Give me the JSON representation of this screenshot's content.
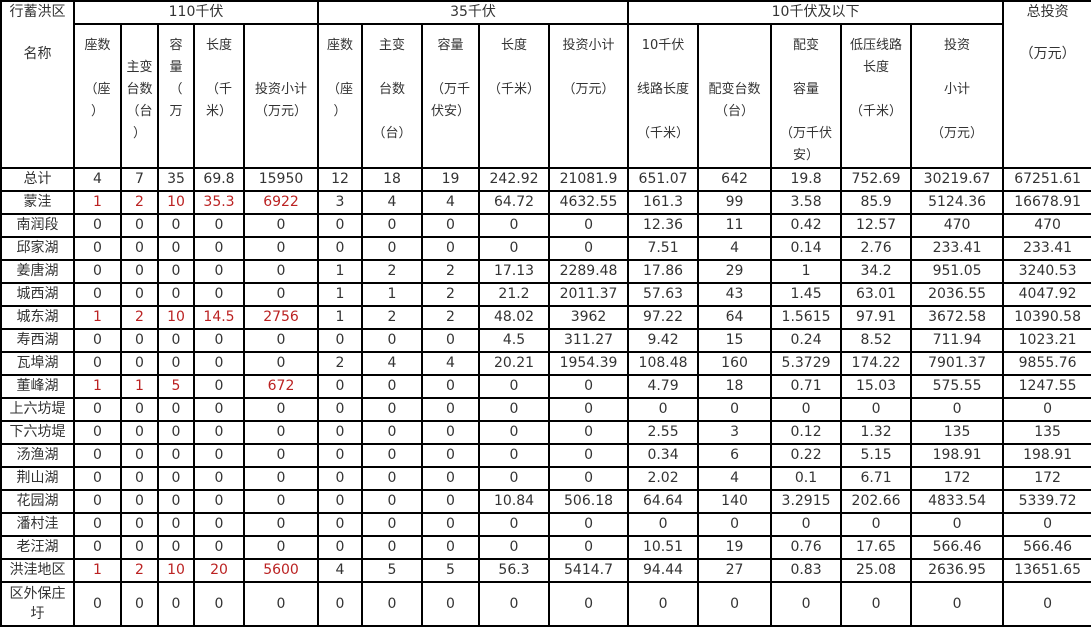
{
  "header": {
    "region": "行蓄洪区\n\n名称",
    "group_110": "110千伏",
    "group_35": "35千伏",
    "group_10": "10千伏及以下",
    "total": "总投资\n\n（万元）",
    "cols_110": [
      "座数\n\n（座\n）",
      "\n主变\n台数\n（台\n）",
      "容\n量\n（\n万",
      "长度\n\n（千\n米）",
      "\n\n投资小计\n（万元）"
    ],
    "cols_35": [
      "座数\n\n（座\n）",
      "主变\n\n台数\n\n（台）",
      "容量\n\n（万千\n伏安）",
      "长度\n\n（千米）",
      "投资小计\n\n（万元）"
    ],
    "cols_10": [
      "10千伏\n\n线路长度\n\n（千米）",
      "\n\n配变台数\n（台）",
      "配变\n\n容量\n\n（万千伏\n安）",
      "低压线路\n长度\n\n（千米）",
      "投资\n\n小计\n\n（万元）"
    ]
  },
  "rows": [
    [
      "总计",
      "4",
      "7",
      "35",
      "69.8",
      "15950",
      "12",
      "18",
      "19",
      "242.92",
      "21081.9",
      "651.07",
      "642",
      "19.8",
      "752.69",
      "30219.67",
      "67251.61"
    ],
    [
      "蒙洼",
      "1",
      "2",
      "10",
      "35.3",
      "6922",
      "3",
      "4",
      "4",
      "64.72",
      "4632.55",
      "161.3",
      "99",
      "3.58",
      "85.9",
      "5124.36",
      "16678.91"
    ],
    [
      "南润段",
      "0",
      "0",
      "0",
      "0",
      "0",
      "0",
      "0",
      "0",
      "0",
      "0",
      "12.36",
      "11",
      "0.42",
      "12.57",
      "470",
      "470"
    ],
    [
      "邱家湖",
      "0",
      "0",
      "0",
      "0",
      "0",
      "0",
      "0",
      "0",
      "0",
      "0",
      "7.51",
      "4",
      "0.14",
      "2.76",
      "233.41",
      "233.41"
    ],
    [
      "姜唐湖",
      "0",
      "0",
      "0",
      "0",
      "0",
      "1",
      "2",
      "2",
      "17.13",
      "2289.48",
      "17.86",
      "29",
      "1",
      "34.2",
      "951.05",
      "3240.53"
    ],
    [
      "城西湖",
      "0",
      "0",
      "0",
      "0",
      "0",
      "1",
      "1",
      "2",
      "21.2",
      "2011.37",
      "57.63",
      "43",
      "1.45",
      "63.01",
      "2036.55",
      "4047.92"
    ],
    [
      "城东湖",
      "1",
      "2",
      "10",
      "14.5",
      "2756",
      "1",
      "2",
      "2",
      "48.02",
      "3962",
      "97.22",
      "64",
      "1.5615",
      "97.91",
      "3672.58",
      "10390.58"
    ],
    [
      "寿西湖",
      "0",
      "0",
      "0",
      "0",
      "0",
      "0",
      "0",
      "0",
      "4.5",
      "311.27",
      "9.42",
      "15",
      "0.24",
      "8.52",
      "711.94",
      "1023.21"
    ],
    [
      "瓦埠湖",
      "0",
      "0",
      "0",
      "0",
      "0",
      "2",
      "4",
      "4",
      "20.21",
      "1954.39",
      "108.48",
      "160",
      "5.3729",
      "174.22",
      "7901.37",
      "9855.76"
    ],
    [
      "董峰湖",
      "1",
      "1",
      "5",
      "0",
      "672",
      "0",
      "0",
      "0",
      "0",
      "0",
      "4.79",
      "18",
      "0.71",
      "15.03",
      "575.55",
      "1247.55"
    ],
    [
      "上六坊堤",
      "0",
      "0",
      "0",
      "0",
      "0",
      "0",
      "0",
      "0",
      "0",
      "0",
      "0",
      "0",
      "0",
      "0",
      "0",
      "0"
    ],
    [
      "下六坊堤",
      "0",
      "0",
      "0",
      "0",
      "0",
      "0",
      "0",
      "0",
      "0",
      "0",
      "2.55",
      "3",
      "0.12",
      "1.32",
      "135",
      "135"
    ],
    [
      "汤渔湖",
      "0",
      "0",
      "0",
      "0",
      "0",
      "0",
      "0",
      "0",
      "0",
      "0",
      "0.34",
      "6",
      "0.22",
      "5.15",
      "198.91",
      "198.91"
    ],
    [
      "荆山湖",
      "0",
      "0",
      "0",
      "0",
      "0",
      "0",
      "0",
      "0",
      "0",
      "0",
      "2.02",
      "4",
      "0.1",
      "6.71",
      "172",
      "172"
    ],
    [
      "花园湖",
      "0",
      "0",
      "0",
      "0",
      "0",
      "0",
      "0",
      "0",
      "10.84",
      "506.18",
      "64.64",
      "140",
      "3.2915",
      "202.66",
      "4833.54",
      "5339.72"
    ],
    [
      "潘村洼",
      "0",
      "0",
      "0",
      "0",
      "0",
      "0",
      "0",
      "0",
      "0",
      "0",
      "0",
      "0",
      "0",
      "0",
      "0",
      "0"
    ],
    [
      "老汪湖",
      "0",
      "0",
      "0",
      "0",
      "0",
      "0",
      "0",
      "0",
      "0",
      "0",
      "10.51",
      "19",
      "0.76",
      "17.65",
      "566.46",
      "566.46"
    ],
    [
      "洪洼地区",
      "1",
      "2",
      "10",
      "20",
      "5600",
      "4",
      "5",
      "5",
      "56.3",
      "5414.7",
      "94.44",
      "27",
      "0.83",
      "25.08",
      "2636.95",
      "13651.65"
    ],
    [
      "区外保庄\n圩",
      "0",
      "0",
      "0",
      "0",
      "0",
      "0",
      "0",
      "0",
      "0",
      "0",
      "0",
      "0",
      "0",
      "0",
      "0",
      "0"
    ]
  ]
}
